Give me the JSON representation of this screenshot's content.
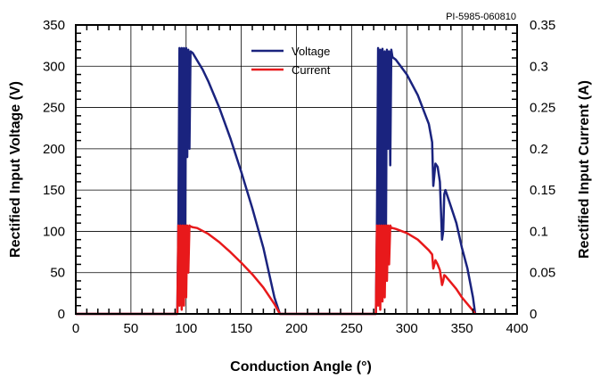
{
  "chart_data": {
    "type": "line",
    "reference_id": "PI-5985-060810",
    "xlabel": "Conduction Angle (°)",
    "ylabel": "Rectified Input Voltage (V)",
    "ylabel_right": "Rectified Input Current (A)",
    "xlim": [
      0,
      400
    ],
    "ylim": [
      0,
      350
    ],
    "ylim_right": [
      0,
      0.35
    ],
    "x_ticks": [
      "0",
      "50",
      "100",
      "150",
      "200",
      "250",
      "300",
      "350",
      "400"
    ],
    "y_ticks": [
      "0",
      "50",
      "100",
      "150",
      "200",
      "250",
      "300",
      "350"
    ],
    "y_ticks_right": [
      "0",
      "0.05",
      "0.1",
      "0.15",
      "0.2",
      "0.25",
      "0.3",
      "0.35"
    ],
    "grid": true,
    "legend_position": "top-center",
    "colors": {
      "voltage": "#1a237e",
      "current": "#e8191b"
    },
    "series": [
      {
        "name": "Voltage",
        "axis": "left",
        "x": [
          0,
          92,
          93,
          94,
          95,
          96,
          97,
          98,
          99,
          100,
          101,
          102,
          103,
          104,
          106,
          110,
          115,
          120,
          130,
          140,
          150,
          160,
          170,
          180,
          185,
          272,
          273,
          274,
          275,
          276,
          277,
          278,
          279,
          280,
          281,
          282,
          283,
          284,
          285,
          286,
          287,
          290,
          300,
          310,
          320,
          323,
          324,
          326,
          328,
          330,
          332,
          333,
          334,
          335,
          340,
          345,
          350,
          355,
          360,
          362
        ],
        "values": [
          0,
          0,
          115,
          322,
          40,
          322,
          20,
          322,
          60,
          322,
          190,
          320,
          200,
          318,
          316,
          307,
          296,
          282,
          250,
          213,
          172,
          128,
          80,
          20,
          0,
          0,
          110,
          322,
          30,
          320,
          40,
          321,
          70,
          318,
          60,
          320,
          200,
          318,
          180,
          320,
          311,
          308,
          290,
          265,
          230,
          208,
          155,
          182,
          178,
          160,
          90,
          100,
          145,
          150,
          130,
          110,
          80,
          55,
          20,
          0
        ]
      },
      {
        "name": "Current",
        "axis": "right",
        "x": [
          0,
          92,
          93,
          94,
          95,
          96,
          97,
          98,
          99,
          100,
          101,
          102,
          103,
          104,
          106,
          110,
          120,
          130,
          140,
          150,
          160,
          170,
          180,
          185,
          272,
          273,
          274,
          275,
          276,
          277,
          278,
          279,
          280,
          281,
          282,
          283,
          284,
          285,
          286,
          287,
          290,
          300,
          310,
          320,
          323,
          324,
          326,
          328,
          330,
          332,
          333,
          334,
          335,
          340,
          345,
          350,
          355,
          360,
          362
        ],
        "values": [
          0,
          0,
          0.107,
          0.01,
          0.107,
          0.005,
          0.107,
          0.01,
          0.107,
          0.02,
          0.107,
          0.05,
          0.107,
          0.106,
          0.105,
          0.104,
          0.097,
          0.087,
          0.075,
          0.062,
          0.048,
          0.032,
          0.012,
          0,
          0,
          0.107,
          0.01,
          0.107,
          0.005,
          0.107,
          0.015,
          0.107,
          0.02,
          0.107,
          0.04,
          0.107,
          0.06,
          0.107,
          0.104,
          0.104,
          0.103,
          0.098,
          0.09,
          0.077,
          0.072,
          0.055,
          0.065,
          0.06,
          0.053,
          0.035,
          0.04,
          0.047,
          0.046,
          0.038,
          0.03,
          0.02,
          0.012,
          0.004,
          0
        ]
      }
    ]
  }
}
